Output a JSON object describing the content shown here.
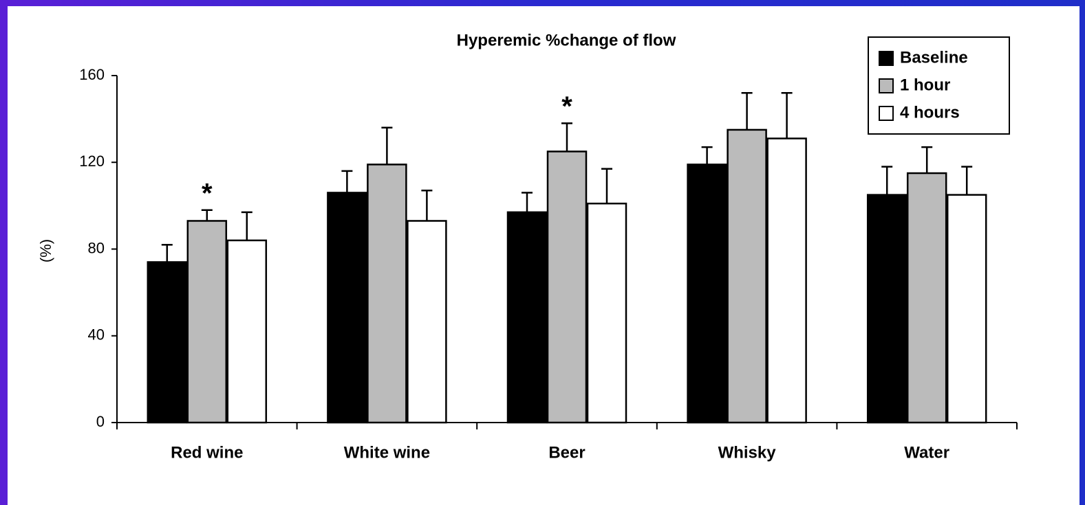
{
  "chart_data": {
    "type": "bar",
    "title": "Hyperemic %change of flow",
    "y_label": "(%)",
    "categories": [
      "Red wine",
      "White wine",
      "Beer",
      "Whisky",
      "Water"
    ],
    "series": [
      {
        "name": "Baseline",
        "color": "#000000",
        "values": [
          74,
          106,
          97,
          119,
          105
        ],
        "errors": [
          8,
          10,
          9,
          8,
          13
        ]
      },
      {
        "name": "1 hour",
        "color": "#bbbbbb",
        "values": [
          93,
          119,
          125,
          135,
          115
        ],
        "errors": [
          5,
          17,
          13,
          17,
          12
        ]
      },
      {
        "name": "4 hours",
        "color": "#ffffff",
        "values": [
          84,
          93,
          101,
          131,
          105
        ],
        "errors": [
          13,
          14,
          16,
          21,
          13
        ]
      }
    ],
    "annotations": [
      {
        "label": "*",
        "category": "Red wine",
        "series": "1 hour"
      },
      {
        "label": "*",
        "category": "Beer",
        "series": "1 hour"
      }
    ],
    "ylim": [
      0,
      160
    ],
    "yticks": [
      0,
      40,
      80,
      120,
      160
    ],
    "grid": false,
    "legend": "top-right"
  }
}
